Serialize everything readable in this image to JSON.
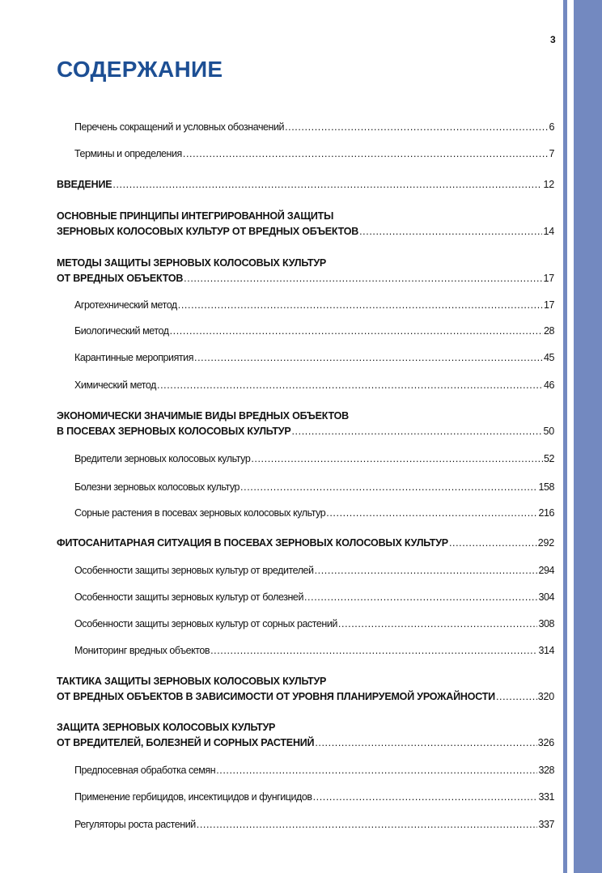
{
  "page_number": "3",
  "title": "СОДЕРЖАНИЕ",
  "accent_color": "#1d4f94",
  "strip_color": "#7389c0",
  "entries": [
    {
      "level": 2,
      "lines": [
        "Перечень сокращений и условных обозначений"
      ],
      "page": "6"
    },
    {
      "level": 2,
      "lines": [
        "Термины и определения"
      ],
      "page": "7"
    },
    {
      "level": 1,
      "lines": [
        "ВВЕДЕНИЕ"
      ],
      "page": "12"
    },
    {
      "level": 1,
      "lines": [
        "ОСНОВНЫЕ ПРИНЦИПЫ ИНТЕГРИРОВАННОЙ ЗАЩИТЫ",
        "ЗЕРНОВЫХ КОЛОСОВЫХ КУЛЬТУР ОТ ВРЕДНЫХ ОБЪЕКТОВ"
      ],
      "page": "14"
    },
    {
      "level": 1,
      "lines": [
        "МЕТОДЫ ЗАЩИТЫ ЗЕРНОВЫХ КОЛОСОВЫХ КУЛЬТУР",
        "ОТ ВРЕДНЫХ ОБЪЕКТОВ"
      ],
      "page": "17"
    },
    {
      "level": 2,
      "lines": [
        "Агротехнический метод"
      ],
      "page": "17"
    },
    {
      "level": 2,
      "lines": [
        "Биологический метод"
      ],
      "page": "28"
    },
    {
      "level": 2,
      "lines": [
        "Карантинные мероприятия"
      ],
      "page": "45"
    },
    {
      "level": 2,
      "lines": [
        "Химический метод"
      ],
      "page": "46"
    },
    {
      "level": 1,
      "lines": [
        "ЭКОНОМИЧЕСКИ ЗНАЧИМЫЕ  ВИДЫ ВРЕДНЫХ ОБЪЕКТОВ",
        "В ПОСЕВАХ  ЗЕРНОВЫХ КОЛОСОВЫХ КУЛЬТУР"
      ],
      "page": "50"
    },
    {
      "level": 2,
      "lines": [
        "Вредители зерновых колосовых культур"
      ],
      "page": "52"
    },
    {
      "level": 2,
      "lines": [
        "Болезни зерновых колосовых культур"
      ],
      "page": "158"
    },
    {
      "level": 2,
      "lines": [
        "Сорные растения в посевах  зерновых колосовых культур"
      ],
      "page": "216"
    },
    {
      "level": 1,
      "lines": [
        "ФИТОСАНИТАРНАЯ  СИТУАЦИЯ В ПОСЕВАХ ЗЕРНОВЫХ КОЛОСОВЫХ КУЛЬТУР"
      ],
      "page": "292"
    },
    {
      "level": 2,
      "lines": [
        "Особенности защиты зерновых культур от вредителей"
      ],
      "page": "294"
    },
    {
      "level": 2,
      "lines": [
        "Особенности защиты  зерновых культур от болезней"
      ],
      "page": "304"
    },
    {
      "level": 2,
      "lines": [
        "Особенности защиты  зерновых культур от сорных растений"
      ],
      "page": "308"
    },
    {
      "level": 2,
      "lines": [
        "Мониторинг вредных объектов"
      ],
      "page": "314"
    },
    {
      "level": 1,
      "lines": [
        "ТАКТИКА ЗАЩИТЫ ЗЕРНОВЫХ КОЛОСОВЫХ КУЛЬТУР",
        "ОТ ВРЕДНЫХ ОБЪЕКТОВ В ЗАВИСИМОСТИ ОТ УРОВНЯ ПЛАНИРУЕМОЙ УРОЖАЙНОСТИ"
      ],
      "page": "320"
    },
    {
      "level": 1,
      "lines": [
        "ЗАЩИТА ЗЕРНОВЫХ КОЛОСОВЫХ КУЛЬТУР",
        "ОТ ВРЕДИТЕЛЕЙ, БОЛЕЗНЕЙ И СОРНЫХ РАСТЕНИЙ"
      ],
      "page": "326"
    },
    {
      "level": 2,
      "lines": [
        "Предпосевная обработка семян"
      ],
      "page": "328"
    },
    {
      "level": 2,
      "lines": [
        "Применение гербицидов,  инсектицидов  и фунгицидов"
      ],
      "page": "331"
    },
    {
      "level": 2,
      "lines": [
        "Регуляторы роста растений"
      ],
      "page": "337"
    }
  ]
}
